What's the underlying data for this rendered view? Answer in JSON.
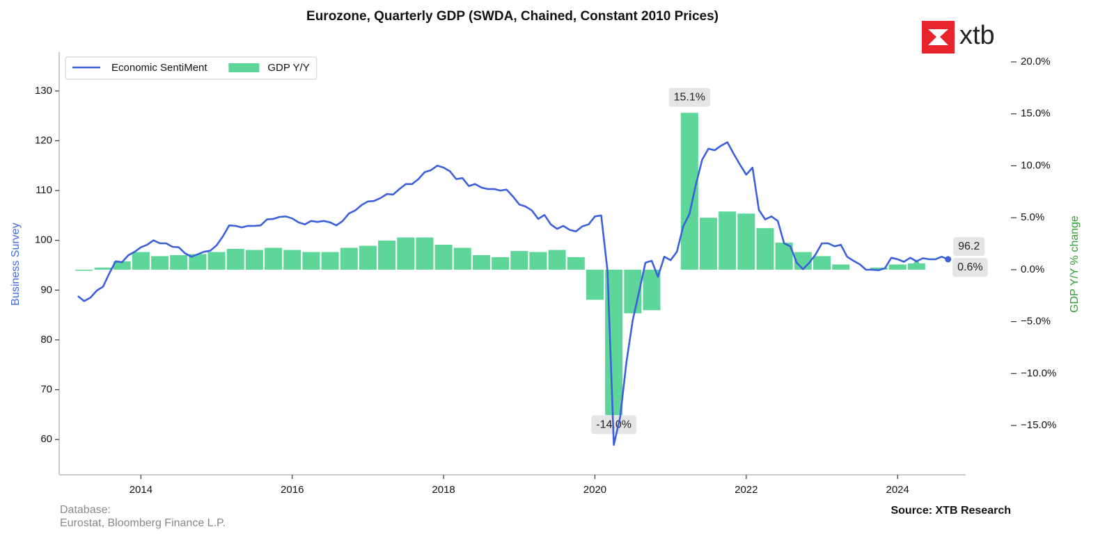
{
  "chart_data": {
    "type": "combo",
    "title": "Eurozone, Quarterly GDP (SWDA, Chained, Constant 2010 Prices)",
    "ylabel": "Business Survey",
    "y2label": "GDP Y/Y % change",
    "footnote": [
      "Database:",
      "Eurostat, Bloomberg Finance L.P."
    ],
    "source": "Source: XTB Research",
    "logo": "xtb",
    "legend": "upper left",
    "xlim": [
      2012.92,
      2024.9
    ],
    "xticks": [
      2014,
      2016,
      2018,
      2020,
      2022,
      2024
    ],
    "ylim": [
      52.9,
      137.8
    ],
    "yticks": [
      60,
      70,
      80,
      90,
      100,
      110,
      120,
      130
    ],
    "y2lim": [
      -19.75,
      20.94
    ],
    "y2ticks": [
      {
        "value": 20,
        "label": "20.0%"
      },
      {
        "value": 15,
        "label": "15.0%"
      },
      {
        "value": 10,
        "label": "10.0%"
      },
      {
        "value": 5,
        "label": "5.0%"
      },
      {
        "value": 0,
        "label": "0.0%"
      },
      {
        "value": -5,
        "label": "−5.0%"
      },
      {
        "value": -10,
        "label": "−10.0%"
      },
      {
        "value": -15,
        "label": "−15.0%"
      }
    ],
    "series": [
      {
        "name": "Economic SentiMent",
        "type": "line",
        "color": "#3c5fdc",
        "x": [
          2013.167,
          2013.25,
          2013.333,
          2013.417,
          2013.5,
          2013.583,
          2013.667,
          2013.75,
          2013.833,
          2013.917,
          2014.0,
          2014.083,
          2014.167,
          2014.25,
          2014.333,
          2014.417,
          2014.5,
          2014.583,
          2014.667,
          2014.75,
          2014.833,
          2014.917,
          2015.0,
          2015.083,
          2015.167,
          2015.25,
          2015.333,
          2015.417,
          2015.5,
          2015.583,
          2015.667,
          2015.75,
          2015.833,
          2015.917,
          2016.0,
          2016.083,
          2016.167,
          2016.25,
          2016.333,
          2016.417,
          2016.5,
          2016.583,
          2016.667,
          2016.75,
          2016.833,
          2016.917,
          2017.0,
          2017.083,
          2017.167,
          2017.25,
          2017.333,
          2017.417,
          2017.5,
          2017.583,
          2017.667,
          2017.75,
          2017.833,
          2017.917,
          2018.0,
          2018.083,
          2018.167,
          2018.25,
          2018.333,
          2018.417,
          2018.5,
          2018.583,
          2018.667,
          2018.75,
          2018.833,
          2018.917,
          2019.0,
          2019.083,
          2019.167,
          2019.25,
          2019.333,
          2019.417,
          2019.5,
          2019.583,
          2019.667,
          2019.75,
          2019.833,
          2019.917,
          2020.0,
          2020.083,
          2020.167,
          2020.25,
          2020.333,
          2020.417,
          2020.5,
          2020.583,
          2020.667,
          2020.75,
          2020.833,
          2020.917,
          2021.0,
          2021.083,
          2021.167,
          2021.25,
          2021.333,
          2021.417,
          2021.5,
          2021.583,
          2021.667,
          2021.75,
          2021.833,
          2021.917,
          2022.0,
          2022.083,
          2022.167,
          2022.25,
          2022.333,
          2022.417,
          2022.5,
          2022.583,
          2022.667,
          2022.75,
          2022.833,
          2022.917,
          2023.0,
          2023.083,
          2023.167,
          2023.25,
          2023.333,
          2023.417,
          2023.5,
          2023.583,
          2023.667,
          2023.75,
          2023.833,
          2023.917,
          2024.0,
          2024.083,
          2024.167,
          2024.25,
          2024.333,
          2024.417,
          2024.5,
          2024.583,
          2024.667
        ],
        "values": [
          88.8,
          87.8,
          88.5,
          89.9,
          90.7,
          93.4,
          95.8,
          95.6,
          97.0,
          97.7,
          98.6,
          99.1,
          100.0,
          99.4,
          99.4,
          98.7,
          98.6,
          97.4,
          96.7,
          97.2,
          97.7,
          97.9,
          99.0,
          100.8,
          103.0,
          102.9,
          102.6,
          102.9,
          102.9,
          103.0,
          104.2,
          104.3,
          104.7,
          104.8,
          104.4,
          103.6,
          103.2,
          103.9,
          103.7,
          103.9,
          103.6,
          103.0,
          103.9,
          105.4,
          106.0,
          107.1,
          107.8,
          107.9,
          108.5,
          109.3,
          109.2,
          110.3,
          111.3,
          111.3,
          112.3,
          113.7,
          114.1,
          115.0,
          114.6,
          113.9,
          112.3,
          112.5,
          110.9,
          111.3,
          110.6,
          110.3,
          110.3,
          110.0,
          110.2,
          108.8,
          107.2,
          106.8,
          106.0,
          104.3,
          105.1,
          103.2,
          102.3,
          102.9,
          102.1,
          101.8,
          102.8,
          103.2,
          104.8,
          105.0,
          93.8,
          58.9,
          64.5,
          75.6,
          84.0,
          89.6,
          95.5,
          95.9,
          92.7,
          96.7,
          96.0,
          97.7,
          102.8,
          105.3,
          111.1,
          116.2,
          118.4,
          118.1,
          119.0,
          119.7,
          117.4,
          115.2,
          113.2,
          114.6,
          106.1,
          104.2,
          104.8,
          103.9,
          99.4,
          98.8,
          95.5,
          94.2,
          95.5,
          97.2,
          99.4,
          99.4,
          98.8,
          99.1,
          96.7,
          95.9,
          95.2,
          94.1,
          94.1,
          94.0,
          94.4,
          96.5,
          96.2,
          95.7,
          96.5,
          95.8,
          96.4,
          96.2,
          96.2,
          96.7,
          96.2
        ]
      },
      {
        "name": "GDP Y/Y",
        "type": "bar",
        "axis": "y2",
        "color": "#5ed69a",
        "x": [
          2013.25,
          2013.5,
          2013.75,
          2014.0,
          2014.25,
          2014.5,
          2014.75,
          2015.0,
          2015.25,
          2015.5,
          2015.75,
          2016.0,
          2016.25,
          2016.5,
          2016.75,
          2017.0,
          2017.25,
          2017.5,
          2017.75,
          2018.0,
          2018.25,
          2018.5,
          2018.75,
          2019.0,
          2019.25,
          2019.5,
          2019.75,
          2020.0,
          2020.25,
          2020.5,
          2020.75,
          2021.0,
          2021.25,
          2021.5,
          2021.75,
          2022.0,
          2022.25,
          2022.5,
          2022.75,
          2023.0,
          2023.25,
          2023.5,
          2023.75,
          2024.0,
          2024.25
        ],
        "values": [
          -0.1,
          0.2,
          0.8,
          1.7,
          1.3,
          1.4,
          1.5,
          1.7,
          2.0,
          1.9,
          2.1,
          1.9,
          1.7,
          1.7,
          2.1,
          2.3,
          2.8,
          3.1,
          3.1,
          2.4,
          2.1,
          1.4,
          1.2,
          1.8,
          1.7,
          1.9,
          1.2,
          -2.9,
          -14.0,
          -4.2,
          -3.9,
          null,
          15.1,
          5.0,
          5.6,
          5.4,
          4.0,
          2.6,
          1.7,
          1.3,
          0.5,
          0.0,
          0.2,
          0.5,
          0.6
        ],
        "value_labels": [
          null,
          null,
          null,
          null,
          null,
          null,
          null,
          null,
          null,
          null,
          null,
          null,
          null,
          null,
          null,
          null,
          null,
          null,
          null,
          null,
          null,
          null,
          null,
          null,
          null,
          null,
          null,
          null,
          "-14.0%",
          null,
          null,
          null,
          "15.1%",
          null,
          null,
          null,
          null,
          null,
          null,
          null,
          null,
          null,
          null,
          null,
          "0.6%"
        ]
      }
    ]
  }
}
